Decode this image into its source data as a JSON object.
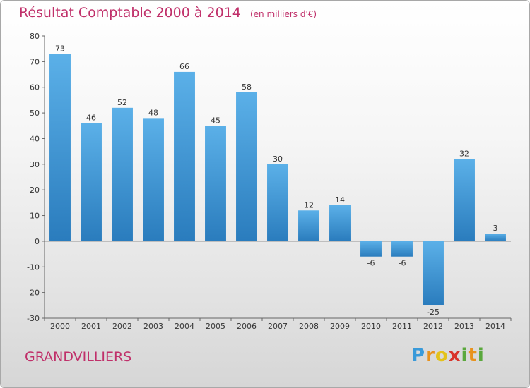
{
  "header": {
    "title": "Résultat Comptable 2000 à 2014",
    "subtitle": "(en milliers d'€)"
  },
  "footer": {
    "town": "GRANDVILLIERS",
    "logo": {
      "text": "Proxiti",
      "letters": [
        "P",
        "r",
        "o",
        "x",
        "i",
        "t",
        "i"
      ],
      "colors": [
        "#3a9ad9",
        "#e8921d",
        "#e4c21a",
        "#d9342b",
        "#5aa83c",
        "#e8921d",
        "#5aa83c"
      ]
    }
  },
  "chart_data": {
    "type": "bar",
    "title": "Résultat Comptable 2000 à 2014",
    "subtitle": "(en milliers d'€)",
    "categories": [
      "2000",
      "2001",
      "2002",
      "2003",
      "2004",
      "2005",
      "2006",
      "2007",
      "2008",
      "2009",
      "2010",
      "2011",
      "2012",
      "2013",
      "2014"
    ],
    "values": [
      73,
      46,
      52,
      48,
      66,
      45,
      58,
      30,
      12,
      14,
      -6,
      -6,
      -25,
      32,
      3
    ],
    "ylim": [
      -30,
      80
    ],
    "yticks": [
      -30,
      -20,
      -10,
      0,
      10,
      20,
      30,
      40,
      50,
      60,
      70,
      80
    ],
    "grid": false,
    "legend": "none",
    "bar_color_top": "#5bb0e8",
    "bar_color_bottom": "#2a7cbd"
  }
}
